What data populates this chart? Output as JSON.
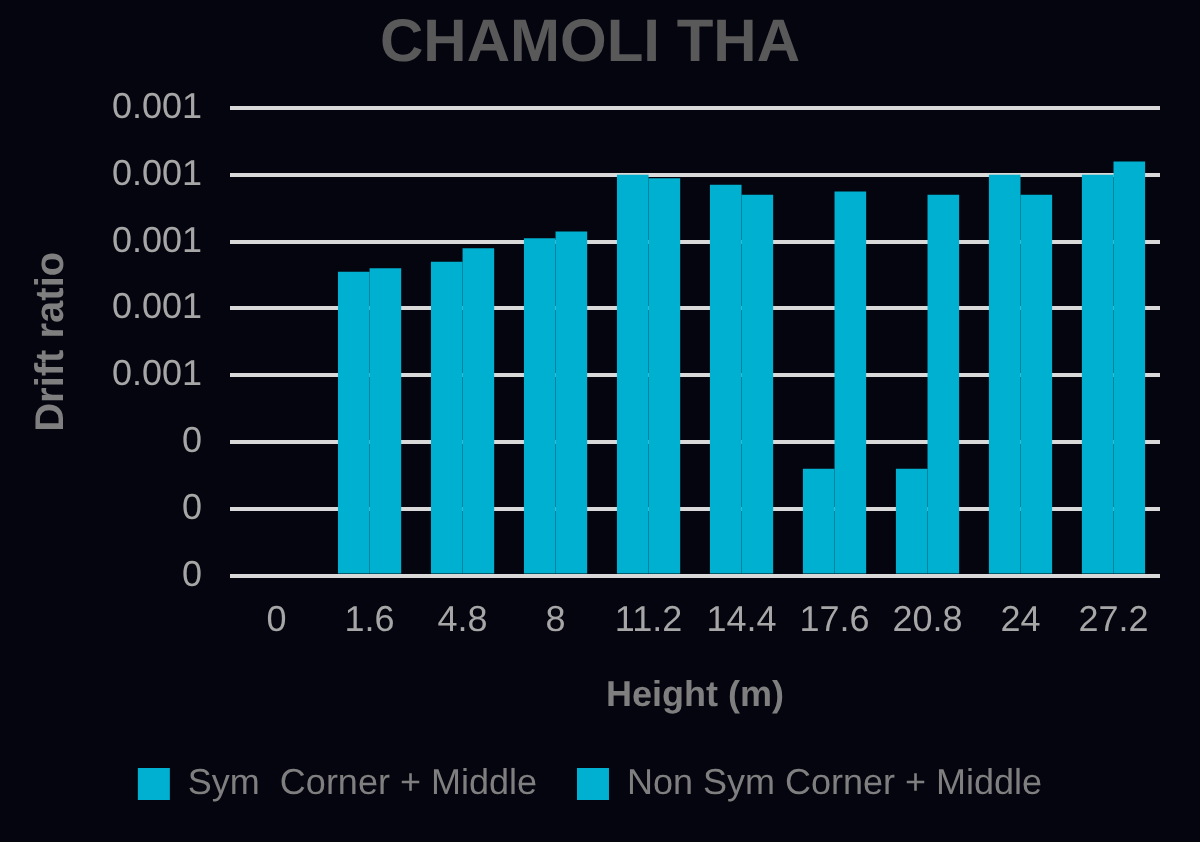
{
  "chart_data": {
    "type": "bar",
    "title": "CHAMOLI THA",
    "xlabel": "Height (m)",
    "ylabel": "Drift ratio",
    "categories": [
      "0",
      "1.6",
      "4.8",
      "8",
      "11.2",
      "14.4",
      "17.6",
      "20.8",
      "24",
      "27.2"
    ],
    "series": [
      {
        "name": "Sym  Corner + Middle",
        "color": "#00b0d0",
        "values": [
          0,
          0.00091,
          0.00094,
          0.00101,
          0.0012,
          0.00117,
          0.00032,
          0.00032,
          0.0012,
          0.0012
        ]
      },
      {
        "name": "Non Sym Corner + Middle",
        "color": "#00b0d0",
        "values": [
          0,
          0.00092,
          0.00098,
          0.00103,
          0.00119,
          0.00114,
          0.00115,
          0.00114,
          0.00114,
          0.00124
        ]
      }
    ],
    "ylim": [
      0,
      0.0014
    ],
    "yticks": [
      {
        "value": 0,
        "label": "0"
      },
      {
        "value": 0.0002,
        "label": "0"
      },
      {
        "value": 0.0004,
        "label": "0"
      },
      {
        "value": 0.0006,
        "label": "0.001"
      },
      {
        "value": 0.0008,
        "label": "0.001"
      },
      {
        "value": 0.001,
        "label": "0.001"
      },
      {
        "value": 0.0012,
        "label": "0.001"
      },
      {
        "value": 0.0014,
        "label": "0.001"
      }
    ],
    "grid": "y",
    "legend": "bottom"
  }
}
